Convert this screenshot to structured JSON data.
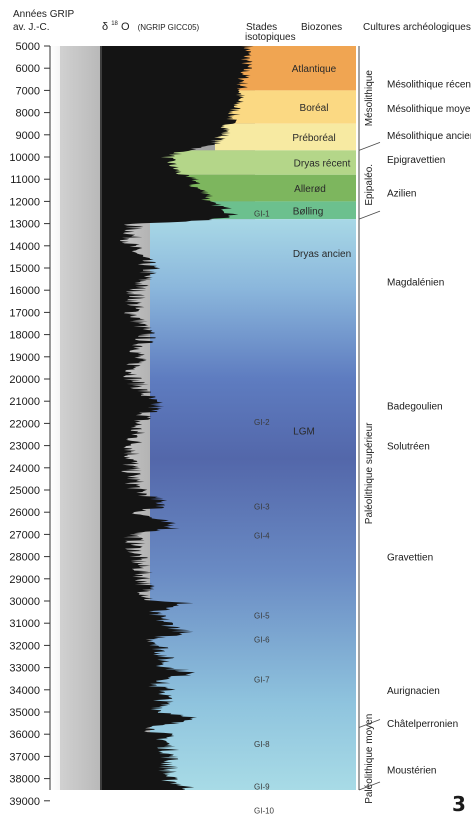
{
  "header": {
    "year_axis_title_1": "Années GRIP",
    "year_axis_title_2": "av. J.-C.",
    "delta_label": "δ",
    "delta_sup": "18",
    "delta_o": "O",
    "delta_source": "(NGRIP GICC05)",
    "stages_title_1": "Stades",
    "stages_title_2": "isotopiques",
    "biozones_title": "Biozones",
    "cultures_title": "Cultures archéologiques"
  },
  "page_number": "3",
  "chart_data": {
    "type": "area",
    "title": "",
    "ylabel": "Années GRIP av. J.-C.",
    "xlabel": "δ18O (NGRIP GICC05)",
    "ylim": [
      5000,
      40000
    ],
    "yticks": [
      5000,
      6000,
      7000,
      8000,
      9000,
      10000,
      11000,
      12000,
      13000,
      14000,
      15000,
      16000,
      17000,
      18000,
      19000,
      20000,
      21000,
      22000,
      23000,
      24000,
      25000,
      26000,
      27000,
      28000,
      29000,
      30000,
      31000,
      32000,
      33000,
      34000,
      35000,
      36000,
      37000,
      38000,
      39000
    ],
    "series": [
      {
        "values_age": [
          5000,
          6000,
          7000,
          8000,
          9000,
          9500,
          9700,
          10000,
          10500,
          10900,
          11000,
          11300,
          11700,
          12000,
          12300,
          12700,
          12900,
          13000,
          14000,
          15000,
          16000,
          17000,
          18000,
          19000,
          20000,
          21000,
          21200,
          22000,
          23000,
          24000,
          25000,
          25700,
          26000,
          26700,
          27000,
          28000,
          29000,
          30000,
          30100,
          30500,
          31000,
          31400,
          31700,
          32000,
          33000,
          33200,
          33800,
          34000,
          35000,
          35200,
          35800,
          36000,
          37000,
          38000,
          38500,
          39000,
          39400,
          39800
        ],
        "values_level": [
          0.88,
          0.87,
          0.84,
          0.8,
          0.74,
          0.66,
          0.52,
          0.4,
          0.44,
          0.5,
          0.58,
          0.55,
          0.66,
          0.63,
          0.75,
          0.8,
          0.52,
          0.2,
          0.18,
          0.3,
          0.22,
          0.2,
          0.28,
          0.22,
          0.2,
          0.3,
          0.34,
          0.22,
          0.2,
          0.18,
          0.22,
          0.4,
          0.22,
          0.46,
          0.2,
          0.22,
          0.26,
          0.3,
          0.52,
          0.3,
          0.4,
          0.5,
          0.32,
          0.36,
          0.4,
          0.54,
          0.32,
          0.4,
          0.36,
          0.56,
          0.3,
          0.38,
          0.42,
          0.4,
          0.55,
          0.4,
          0.58,
          0.45
        ]
      }
    ],
    "biozones": [
      {
        "name": "Atlantique",
        "from": 5000,
        "to": 7000,
        "color": "#f0a552"
      },
      {
        "name": "Boréal",
        "from": 7000,
        "to": 8500,
        "color": "#fbd983"
      },
      {
        "name": "Préboréal",
        "from": 8500,
        "to": 9700,
        "color": "#f7eaa2"
      },
      {
        "name": "Dryas récent",
        "from": 9700,
        "to": 10800,
        "color": "#b4d689"
      },
      {
        "name": "Allerød",
        "from": 10800,
        "to": 12000,
        "color": "#7db65e"
      },
      {
        "name": "Bølling",
        "from": 12000,
        "to": 12800,
        "color": "#6cc08e"
      },
      {
        "name": "Dryas ancien",
        "from": 12800,
        "to": 40000,
        "color": "gradient"
      },
      {
        "name": "LGM",
        "from": 20000,
        "to": 24000,
        "color": "#5169a8"
      }
    ],
    "stages": [
      {
        "name": "GI-1",
        "age": 12500
      },
      {
        "name": "GI-2",
        "age": 21900
      },
      {
        "name": "GI-3",
        "age": 25700
      },
      {
        "name": "GI-4",
        "age": 27000
      },
      {
        "name": "GI-5",
        "age": 30600
      },
      {
        "name": "GI-6",
        "age": 31700
      },
      {
        "name": "GI-7",
        "age": 33500
      },
      {
        "name": "GI-8",
        "age": 36400
      },
      {
        "name": "GI-9",
        "age": 38300
      },
      {
        "name": "GI-10",
        "age": 39400
      }
    ],
    "periods": [
      {
        "name": "Mésolithique",
        "from": 5000,
        "to": 9700
      },
      {
        "name": "Epipaléo.",
        "from": 9700,
        "to": 12800
      },
      {
        "name": "Paléolithique supérieur",
        "from": 12800,
        "to": 35700
      },
      {
        "name": "Paléolithique moyen",
        "from": 35700,
        "to": 40000
      }
    ],
    "cultures": [
      {
        "name": "Mésolithique récent",
        "age": 6700
      },
      {
        "name": "Mésolithique moyen",
        "age": 7800
      },
      {
        "name": "Mésolithique ancien",
        "age": 9000
      },
      {
        "name": "Epigravettien",
        "age": 10100
      },
      {
        "name": "Azilien",
        "age": 11600
      },
      {
        "name": "Magdalénien",
        "age": 15600
      },
      {
        "name": "Badegoulien",
        "age": 21200
      },
      {
        "name": "Solutréen",
        "age": 23000
      },
      {
        "name": "Gravettien",
        "age": 28000
      },
      {
        "name": "Aurignacien",
        "age": 34000
      },
      {
        "name": "Châtelperronien",
        "age": 35500
      },
      {
        "name": "Moustérien",
        "age": 37600
      }
    ]
  }
}
